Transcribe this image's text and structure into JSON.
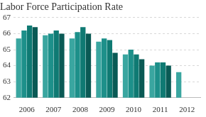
{
  "chart_data": {
    "type": "bar",
    "title": "Labor Force Participation Rate",
    "categories": [
      "2006",
      "2007",
      "2008",
      "2009",
      "2010",
      "2011",
      "2012"
    ],
    "series": [
      {
        "color": "#3aa6a0",
        "values": [
          65.7,
          65.9,
          65.7,
          65.5,
          64.7,
          64.0,
          63.6
        ]
      },
      {
        "color": "#1d908a",
        "values": [
          66.2,
          66.0,
          66.1,
          65.7,
          65.0,
          64.2,
          null
        ]
      },
      {
        "color": "#0f7a73",
        "values": [
          66.5,
          66.2,
          66.4,
          65.6,
          64.7,
          64.2,
          null
        ]
      },
      {
        "color": "#0a5a55",
        "values": [
          66.4,
          66.0,
          66.0,
          64.8,
          64.4,
          64.0,
          null
        ]
      }
    ],
    "ylim": [
      62,
      67
    ],
    "yticks": [
      62,
      63,
      64,
      65,
      66,
      67
    ],
    "grid": true
  }
}
